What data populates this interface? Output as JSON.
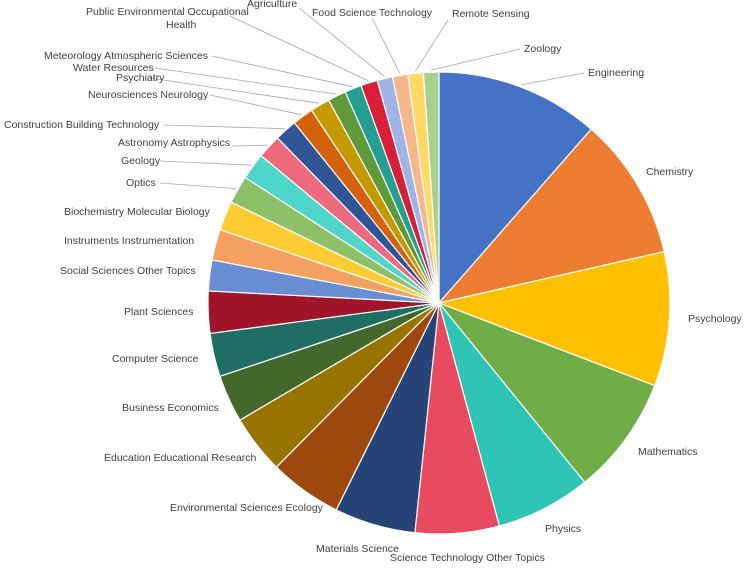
{
  "chart_data": {
    "type": "pie",
    "title": "",
    "start_angle_deg": 0,
    "direction": "clockwise",
    "slices": [
      {
        "label": "Engineering",
        "value": 11.7,
        "color": "#4472C4"
      },
      {
        "label": "Chemistry",
        "value": 10.2,
        "color": "#ED7D31"
      },
      {
        "label": "Psychology",
        "value": 9.6,
        "color": "#FFC000"
      },
      {
        "label": "Mathematics",
        "value": 8.5,
        "color": "#70AD47"
      },
      {
        "label": "Physics",
        "value": 6.8,
        "color": "#2EC4B6"
      },
      {
        "label": "Science Technology Other Topics",
        "value": 6.0,
        "color": "#E84A5F"
      },
      {
        "label": "Materials Science",
        "value": 5.8,
        "color": "#264478"
      },
      {
        "label": "Environmental Sciences Ecology",
        "value": 5.2,
        "color": "#9E480E"
      },
      {
        "label": "Education Educational Research",
        "value": 4.2,
        "color": "#997300"
      },
      {
        "label": "Business Economics",
        "value": 3.4,
        "color": "#43682B"
      },
      {
        "label": "Computer Science",
        "value": 3.1,
        "color": "#1E6E64"
      },
      {
        "label": "Plant Sciences",
        "value": 3.0,
        "color": "#A0152A"
      },
      {
        "label": "Social Sciences Other Topics",
        "value": 2.2,
        "color": "#6A8ED4"
      },
      {
        "label": "Instruments Instrumentation",
        "value": 2.2,
        "color": "#F4A05E"
      },
      {
        "label": "Biochemistry Molecular Biology",
        "value": 2.1,
        "color": "#FFCD33"
      },
      {
        "label": "Optics",
        "value": 2.0,
        "color": "#8CC168"
      },
      {
        "label": "Geology",
        "value": 1.9,
        "color": "#4DD6C9"
      },
      {
        "label": "Astronomy Astrophysics",
        "value": 1.7,
        "color": "#EE6B7E"
      },
      {
        "label": "Construction Building Technology",
        "value": 1.6,
        "color": "#2F5597"
      },
      {
        "label": "Neurosciences Neurology",
        "value": 1.5,
        "color": "#D4610B"
      },
      {
        "label": "Psychiatry",
        "value": 1.4,
        "color": "#C49A00"
      },
      {
        "label": "Water Resources",
        "value": 1.3,
        "color": "#5E9A3A"
      },
      {
        "label": "Meteorology Atmospheric Sciences",
        "value": 1.2,
        "color": "#239E91"
      },
      {
        "label": "Public Environmental Occupational Health",
        "value": 1.2,
        "color": "#D81F3A"
      },
      {
        "label": "Agriculture",
        "value": 1.1,
        "color": "#9DB4E4"
      },
      {
        "label": "Food Science Technology",
        "value": 1.1,
        "color": "#F6B88A"
      },
      {
        "label": "Remote Sensing",
        "value": 1.1,
        "color": "#FFD966"
      },
      {
        "label": "Zoology",
        "value": 1.1,
        "color": "#A9D18E"
      }
    ]
  }
}
